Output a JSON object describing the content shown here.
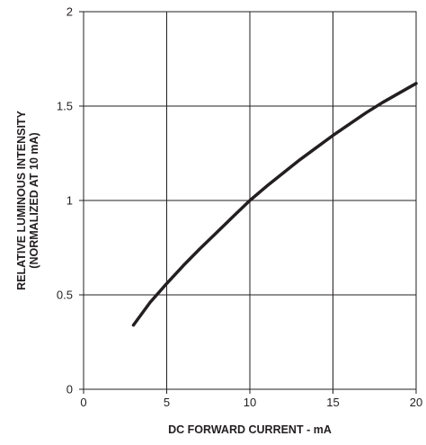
{
  "chart_data": {
    "type": "line",
    "xlabel": "DC FORWARD CURRENT - mA",
    "ylabel_line1": "RELATIVE LUMINOUS INTENSITY",
    "ylabel_line2": "(NORMALIZED AT 10 mA)",
    "xlim": [
      0,
      20
    ],
    "ylim": [
      0,
      2
    ],
    "x_ticks": [
      0,
      5,
      10,
      15,
      20
    ],
    "y_ticks": [
      0,
      0.5,
      1,
      1.5,
      2
    ],
    "x_tick_labels": [
      "0",
      "5",
      "10",
      "15",
      "20"
    ],
    "y_tick_labels": [
      "0",
      "0.5",
      "1",
      "1.5",
      "2"
    ],
    "grid": true,
    "series": [
      {
        "color": "#231f20",
        "x": [
          3,
          4,
          5,
          6,
          7,
          8,
          9,
          10,
          11,
          12,
          13,
          14,
          15,
          16,
          17,
          18,
          19,
          20
        ],
        "y": [
          0.34,
          0.46,
          0.56,
          0.655,
          0.745,
          0.83,
          0.915,
          1.0,
          1.075,
          1.145,
          1.215,
          1.28,
          1.345,
          1.405,
          1.465,
          1.52,
          1.57,
          1.62
        ]
      }
    ]
  }
}
